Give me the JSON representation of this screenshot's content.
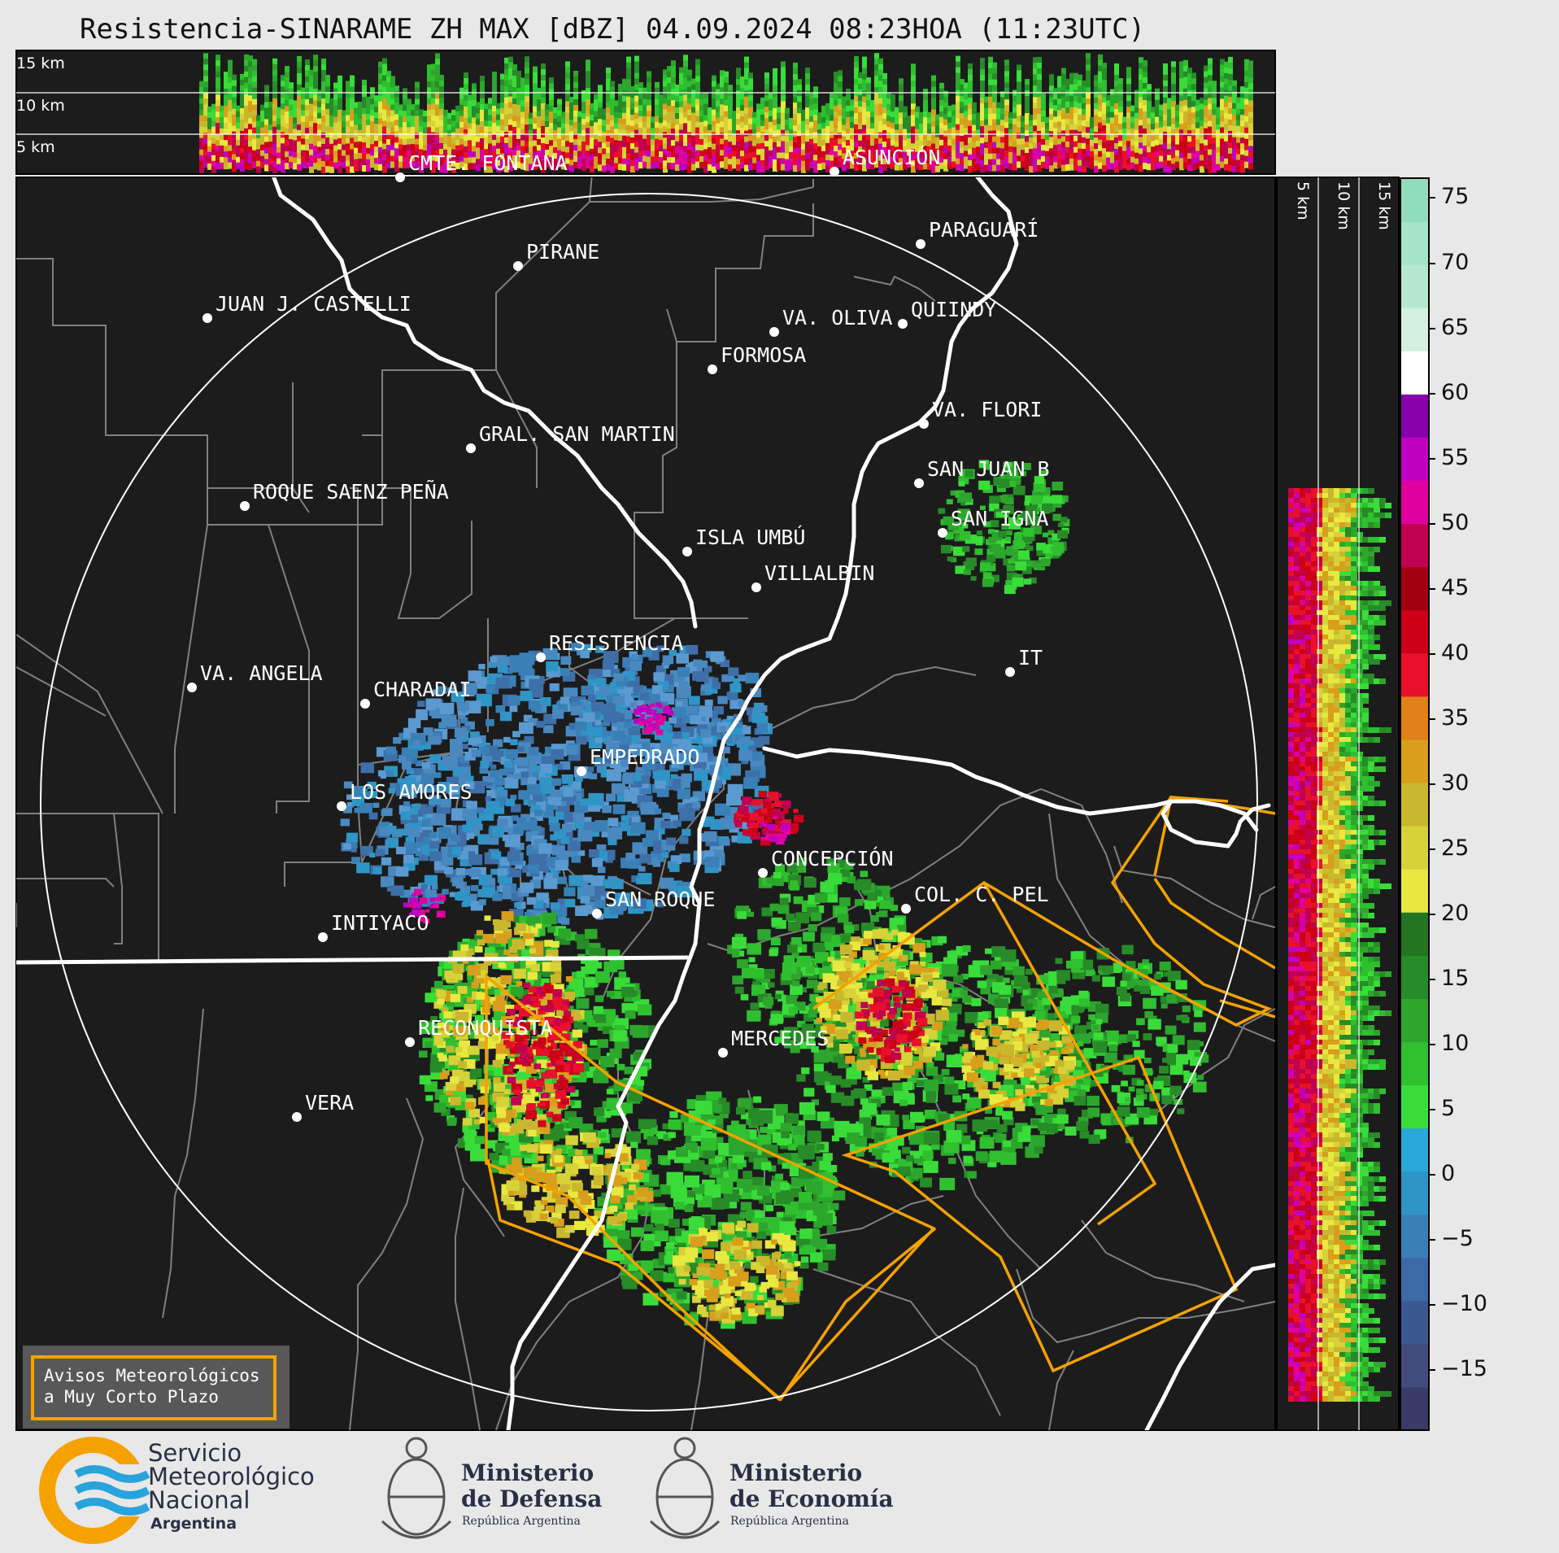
{
  "title": "Resistencia-SINARAME ZH MAX [dBZ] 04.09.2024 08:23HOA (11:23UTC)",
  "top_profile": {
    "height_labels": [
      "15 km",
      "10 km",
      "5 km"
    ]
  },
  "side_profile": {
    "height_labels": [
      "5 km",
      "10 km",
      "15 km"
    ]
  },
  "colorbar": {
    "ticks": [
      "75",
      "70",
      "65",
      "60",
      "55",
      "50",
      "45",
      "40",
      "35",
      "30",
      "25",
      "20",
      "15",
      "10",
      "5",
      "0",
      "−5",
      "−10",
      "−15"
    ],
    "colors": [
      "#3a3b66",
      "#414c7c",
      "#3c5891",
      "#3b6aa6",
      "#3a80b7",
      "#2f95c7",
      "#2aa8d8",
      "#3adc3a",
      "#2fbf2f",
      "#2ca62c",
      "#278b27",
      "#237523",
      "#e8e840",
      "#d6d238",
      "#c9b82e",
      "#d89e1c",
      "#e2801a",
      "#e8102a",
      "#cc0018",
      "#a00010",
      "#c00050",
      "#e000a0",
      "#c000c0",
      "#8800aa",
      "#ffffff",
      "#d4f0e0",
      "#b6e8d0",
      "#a4e4c8",
      "#90dcbc"
    ]
  },
  "places": [
    {
      "name": "CMTE. FONTANA"
    },
    {
      "name": "ASUNCIÓN"
    },
    {
      "name": "PARAGUARÍ"
    },
    {
      "name": "PIRANE"
    },
    {
      "name": "JUAN J. CASTELLI"
    },
    {
      "name": "VA. OLIVA"
    },
    {
      "name": "QUIINDY"
    },
    {
      "name": "FORMOSA"
    },
    {
      "name": "VA. FLORI"
    },
    {
      "name": "GRAL. SAN MARTIN"
    },
    {
      "name": "SAN JUAN B"
    },
    {
      "name": "ROQUE SAENZ PEÑA"
    },
    {
      "name": "SAN IGNA"
    },
    {
      "name": "ISLA UMBÚ"
    },
    {
      "name": "VILLALBIN"
    },
    {
      "name": "RESISTENCIA"
    },
    {
      "name": "VA. ANGELA"
    },
    {
      "name": "IT"
    },
    {
      "name": "CHARADAI"
    },
    {
      "name": "EMPEDRADO"
    },
    {
      "name": "LOS AMORES"
    },
    {
      "name": "CONCEPCIÓN"
    },
    {
      "name": "COL. C. PEL"
    },
    {
      "name": "SAN ROQUE"
    },
    {
      "name": "INTIYACO"
    },
    {
      "name": "RECONQUISTA"
    },
    {
      "name": "MERCEDES"
    },
    {
      "name": "VERA"
    }
  ],
  "warning_box": {
    "line1": "Avisos Meteorológicos",
    "line2": "a Muy Corto Plazo"
  },
  "logos": {
    "smn": {
      "line1": "Servicio",
      "line2": "Meteorológico",
      "line3": "Nacional",
      "line4": "Argentina"
    },
    "defensa": {
      "line1": "Ministerio",
      "line2": "de Defensa",
      "line3": "República Argentina"
    },
    "economia": {
      "line1": "Ministerio",
      "line2": "de Economía",
      "line3": "República Argentina"
    }
  },
  "colors": {
    "map_bg": "#1c1c1c",
    "warning_outline": "#f5a200",
    "border_white": "#ffffff",
    "admin_lines": "#808080",
    "smn_orange": "#f5a200",
    "smn_blue": "#29a3dc"
  }
}
